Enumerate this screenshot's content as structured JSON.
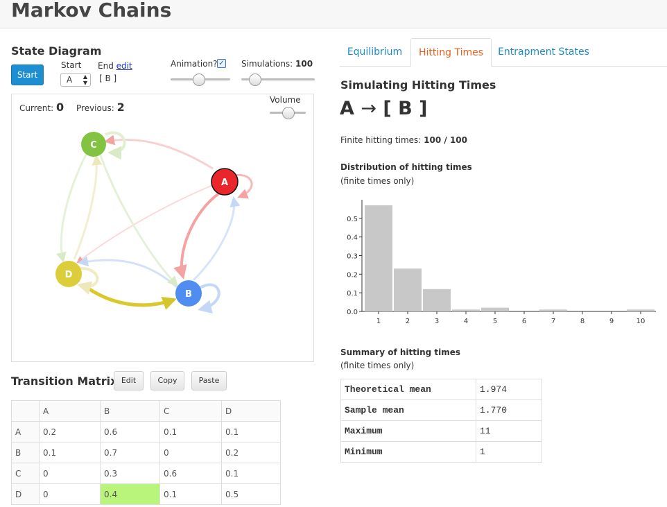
{
  "app": {
    "title": "Markov Chains"
  },
  "state_diagram": {
    "heading": "State Diagram",
    "start_button": "Start",
    "start_label": "Start",
    "start_value": "A",
    "end_label": "End",
    "end_edit": "edit",
    "end_value": "[ B ]",
    "animation_label": "Animation?",
    "animation_checked": true,
    "animation_level": 0.45,
    "simulations_label": "Simulations:",
    "simulations_value": "100",
    "simulations_level": 0.12,
    "current_label": "Current:",
    "current_value": "0",
    "previous_label": "Previous:",
    "previous_value": "2",
    "volume_label": "Volume",
    "volume_level": 0.5,
    "nodes": [
      {
        "id": "A",
        "label": "A",
        "color": "#e8262b"
      },
      {
        "id": "B",
        "label": "B",
        "color": "#4f8ef0"
      },
      {
        "id": "C",
        "label": "C",
        "color": "#82c341"
      },
      {
        "id": "D",
        "label": "D",
        "color": "#dccd3a"
      }
    ]
  },
  "transition_matrix": {
    "heading": "Transition Matrix",
    "edit_button": "Edit",
    "copy_button": "Copy",
    "paste_button": "Paste",
    "columns": [
      "A",
      "B",
      "C",
      "D"
    ],
    "rows": [
      {
        "label": "A",
        "values": [
          "0.2",
          "0.6",
          "0.1",
          "0.1"
        ]
      },
      {
        "label": "B",
        "values": [
          "0.1",
          "0.7",
          "0",
          "0.2"
        ]
      },
      {
        "label": "C",
        "values": [
          "0",
          "0.3",
          "0.6",
          "0.1"
        ]
      },
      {
        "label": "D",
        "values": [
          "0",
          "0.4",
          "0.1",
          "0.5"
        ]
      }
    ],
    "highlight_color": "#b8f57a"
  },
  "tabs": [
    {
      "label": "Equilibrium",
      "active": false
    },
    {
      "label": "Hitting Times",
      "active": true
    },
    {
      "label": "Entrapment States",
      "active": false
    }
  ],
  "hitting": {
    "heading": "Simulating Hitting Times",
    "big_from": "A",
    "big_arrow": "→",
    "big_to": "[ B ]",
    "finite_label": "Finite hitting times:",
    "finite_value": "100 / 100",
    "distribution_title": "Distribution of hitting times",
    "distribution_sub": "(finite times only)",
    "summary_title": "Summary of hitting times",
    "summary_sub": "(finite times only)",
    "summary": [
      {
        "label": "Theoretical mean",
        "value": "1.974"
      },
      {
        "label": "Sample mean",
        "value": "1.770"
      },
      {
        "label": "Maximum",
        "value": "11"
      },
      {
        "label": "Minimum",
        "value": "1"
      }
    ]
  },
  "chart_data": {
    "type": "bar",
    "title": "Distribution of hitting times",
    "categories": [
      "1",
      "2",
      "3",
      "4",
      "5",
      "6",
      "7",
      "8",
      "9",
      "10"
    ],
    "values": [
      0.57,
      0.23,
      0.12,
      0.01,
      0.02,
      0.0,
      0.01,
      0.0,
      0.0,
      0.01
    ],
    "ylim": [
      0,
      0.6
    ],
    "yticks": [
      "0.5",
      "0.4",
      "0.3",
      "0.2",
      "0.1",
      "0.0"
    ],
    "xlabel": "",
    "ylabel": "",
    "grid": false,
    "bar_color": "#c8c8c8"
  }
}
